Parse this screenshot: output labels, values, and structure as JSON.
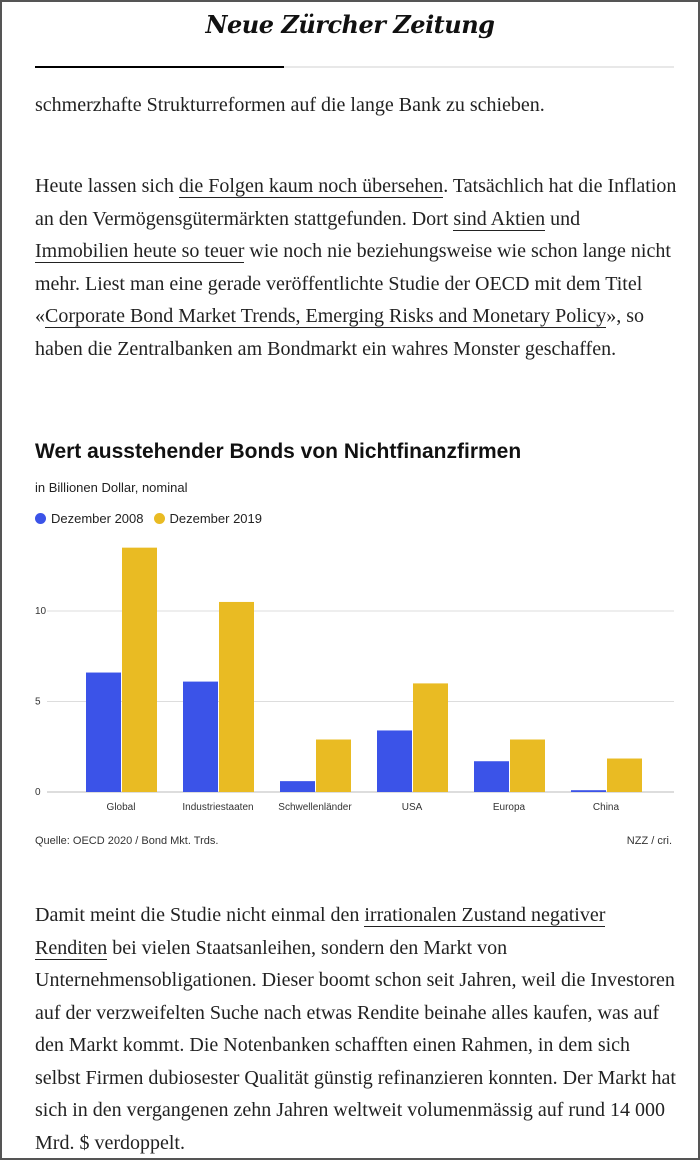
{
  "header": {
    "logo_text": "Neue Zürcher Zeitung",
    "reading_progress_percent": 39
  },
  "paragraphs": [
    [
      {
        "text": "schmerzhafte Strukturreformen auf die lange Bank zu schieben."
      }
    ],
    [
      {
        "text": "Heute lassen sich "
      },
      {
        "text": "die Folgen kaum noch übersehen",
        "link": true
      },
      {
        "text": ". Tatsächlich hat die Inflation an den Vermögensgütermärkten stattgefunden. Dort "
      },
      {
        "text": "sind Aktien",
        "link": true
      },
      {
        "text": " und "
      },
      {
        "text": "Immobilien heute so teuer",
        "link": true
      },
      {
        "text": " wie noch nie beziehungsweise wie schon lange nicht mehr. Liest man eine gerade veröffentlichte Studie der OECD mit dem Titel «"
      },
      {
        "text": "Corporate Bond Market Trends, Emerging Risks and Monetary Policy",
        "link": true
      },
      {
        "text": "», so haben die Zentralbanken am Bondmarkt ein wahres Monster geschaffen."
      }
    ],
    [
      {
        "text": "Damit meint die Studie nicht einmal den "
      },
      {
        "text": "irrationalen Zustand negativer Renditen",
        "link": true
      },
      {
        "text": " bei vielen Staatsanleihen, sondern den Markt von Unternehmensobligationen. Dieser boomt schon seit Jahren, weil die Investoren auf der verzweifelten Suche nach etwas Rendite beinahe alles kaufen, was auf den Markt kommt. Die Notenbanken schafften einen Rahmen, in dem sich selbst Firmen dubiosester Qualität günstig refinanzieren konnten. Der Markt hat sich in den vergangenen zehn Jahren weltweit volumenmässig auf rund 14 000 Mrd. $ verdoppelt."
      }
    ]
  ],
  "chart_data": {
    "type": "bar",
    "title": "Wert ausstehender Bonds von Nichtfinanzfirmen",
    "subtitle": "in Billionen Dollar, nominal",
    "categories": [
      "Global",
      "Industriestaaten",
      "Schwellenländer",
      "USA",
      "Europa",
      "China"
    ],
    "series": [
      {
        "name": "Dezember 2008",
        "color": "#3b53e8",
        "values": [
          6.6,
          6.1,
          0.6,
          3.4,
          1.7,
          0.1
        ]
      },
      {
        "name": "Dezember 2019",
        "color": "#e9bb23",
        "values": [
          13.5,
          10.5,
          2.9,
          6.0,
          2.9,
          1.85
        ]
      }
    ],
    "yticks": [
      "0",
      "5",
      "10"
    ],
    "ylim": [
      0,
      14
    ],
    "grid": true,
    "legend": "top-left",
    "source": "Quelle: OECD 2020 / Bond Mkt. Trds.",
    "credit": "NZZ / cri."
  }
}
